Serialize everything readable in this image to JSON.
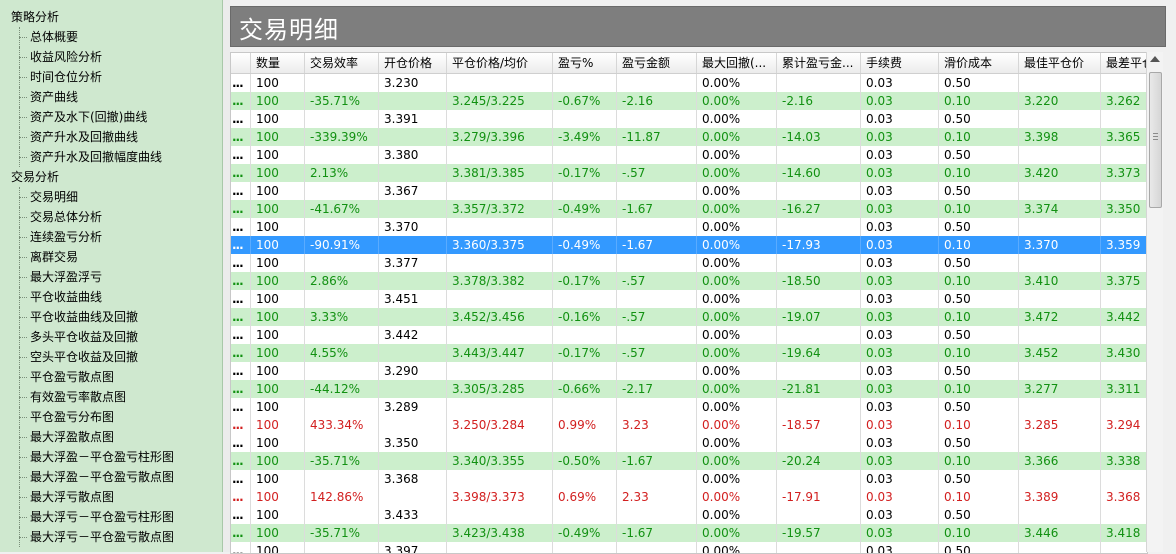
{
  "sidebar": {
    "items": [
      {
        "label": "策略分析",
        "type": "group"
      },
      {
        "label": "总体概要",
        "type": "leaf"
      },
      {
        "label": "收益风险分析",
        "type": "leaf"
      },
      {
        "label": "时间仓位分析",
        "type": "leaf"
      },
      {
        "label": "资产曲线",
        "type": "leaf"
      },
      {
        "label": "资产及水下(回撤)曲线",
        "type": "leaf"
      },
      {
        "label": "资产升水及回撤曲线",
        "type": "leaf"
      },
      {
        "label": "资产升水及回撤幅度曲线",
        "type": "leaf"
      },
      {
        "label": "交易分析",
        "type": "group"
      },
      {
        "label": "交易明细",
        "type": "leaf"
      },
      {
        "label": "交易总体分析",
        "type": "leaf"
      },
      {
        "label": "连续盈亏分析",
        "type": "leaf"
      },
      {
        "label": "离群交易",
        "type": "leaf"
      },
      {
        "label": "最大浮盈浮亏",
        "type": "leaf"
      },
      {
        "label": "平仓收益曲线",
        "type": "leaf"
      },
      {
        "label": "平仓收益曲线及回撤",
        "type": "leaf"
      },
      {
        "label": "多头平仓收益及回撤",
        "type": "leaf"
      },
      {
        "label": "空头平仓收益及回撤",
        "type": "leaf"
      },
      {
        "label": "平仓盈亏散点图",
        "type": "leaf"
      },
      {
        "label": "有效盈亏率散点图",
        "type": "leaf"
      },
      {
        "label": "平仓盈亏分布图",
        "type": "leaf"
      },
      {
        "label": "最大浮盈散点图",
        "type": "leaf"
      },
      {
        "label": "最大浮盈－平仓盈亏柱形图",
        "type": "leaf"
      },
      {
        "label": "最大浮盈－平仓盈亏散点图",
        "type": "leaf"
      },
      {
        "label": "最大浮亏散点图",
        "type": "leaf"
      },
      {
        "label": "最大浮亏－平仓盈亏柱形图",
        "type": "leaf"
      },
      {
        "label": "最大浮亏－平仓盈亏散点图",
        "type": "leaf"
      }
    ]
  },
  "header": {
    "title": "交易明细"
  },
  "table": {
    "columns": [
      "",
      "数量",
      "交易效率",
      "开仓价格",
      "平仓价格/均价",
      "盈亏%",
      "盈亏金额",
      "最大回撤(...",
      "累计盈亏金...",
      "手续费",
      "滑价成本",
      "最佳平仓价",
      "最差平仓"
    ],
    "rows": [
      {
        "style": "white",
        "cells": [
          "...",
          "100",
          "",
          "3.230",
          "",
          "",
          "",
          "0.00%",
          "",
          "0.03",
          "0.50",
          "",
          ""
        ]
      },
      {
        "style": "green",
        "cells": [
          "...",
          "100",
          "-35.71%",
          "",
          "3.245/3.225",
          "-0.67%",
          "-2.16",
          "0.00%",
          "-2.16",
          "0.03",
          "0.10",
          "3.220",
          "3.262"
        ]
      },
      {
        "style": "white",
        "cells": [
          "...",
          "100",
          "",
          "3.391",
          "",
          "",
          "",
          "0.00%",
          "",
          "0.03",
          "0.50",
          "",
          ""
        ]
      },
      {
        "style": "green",
        "cells": [
          "...",
          "100",
          "-339.39%",
          "",
          "3.279/3.396",
          "-3.49%",
          "-11.87",
          "0.00%",
          "-14.03",
          "0.03",
          "0.10",
          "3.398",
          "3.365"
        ]
      },
      {
        "style": "white",
        "cells": [
          "...",
          "100",
          "",
          "3.380",
          "",
          "",
          "",
          "0.00%",
          "",
          "0.03",
          "0.50",
          "",
          ""
        ]
      },
      {
        "style": "green",
        "cells": [
          "...",
          "100",
          "2.13%",
          "",
          "3.381/3.385",
          "-0.17%",
          "-.57",
          "0.00%",
          "-14.60",
          "0.03",
          "0.10",
          "3.420",
          "3.373"
        ]
      },
      {
        "style": "white",
        "cells": [
          "...",
          "100",
          "",
          "3.367",
          "",
          "",
          "",
          "0.00%",
          "",
          "0.03",
          "0.50",
          "",
          ""
        ]
      },
      {
        "style": "green",
        "cells": [
          "...",
          "100",
          "-41.67%",
          "",
          "3.357/3.372",
          "-0.49%",
          "-1.67",
          "0.00%",
          "-16.27",
          "0.03",
          "0.10",
          "3.374",
          "3.350"
        ]
      },
      {
        "style": "white",
        "cells": [
          "...",
          "100",
          "",
          "3.370",
          "",
          "",
          "",
          "0.00%",
          "",
          "0.03",
          "0.50",
          "",
          ""
        ]
      },
      {
        "style": "selected",
        "cells": [
          "...",
          "100",
          "-90.91%",
          "",
          "3.360/3.375",
          "-0.49%",
          "-1.67",
          "0.00%",
          "-17.93",
          "0.03",
          "0.10",
          "3.370",
          "3.359"
        ]
      },
      {
        "style": "white",
        "cells": [
          "...",
          "100",
          "",
          "3.377",
          "",
          "",
          "",
          "0.00%",
          "",
          "0.03",
          "0.50",
          "",
          ""
        ]
      },
      {
        "style": "green",
        "cells": [
          "...",
          "100",
          "2.86%",
          "",
          "3.378/3.382",
          "-0.17%",
          "-.57",
          "0.00%",
          "-18.50",
          "0.03",
          "0.10",
          "3.410",
          "3.375"
        ]
      },
      {
        "style": "white",
        "cells": [
          "...",
          "100",
          "",
          "3.451",
          "",
          "",
          "",
          "0.00%",
          "",
          "0.03",
          "0.50",
          "",
          ""
        ]
      },
      {
        "style": "green",
        "cells": [
          "...",
          "100",
          "3.33%",
          "",
          "3.452/3.456",
          "-0.16%",
          "-.57",
          "0.00%",
          "-19.07",
          "0.03",
          "0.10",
          "3.472",
          "3.442"
        ]
      },
      {
        "style": "white",
        "cells": [
          "...",
          "100",
          "",
          "3.442",
          "",
          "",
          "",
          "0.00%",
          "",
          "0.03",
          "0.50",
          "",
          ""
        ]
      },
      {
        "style": "green",
        "cells": [
          "...",
          "100",
          "4.55%",
          "",
          "3.443/3.447",
          "-0.17%",
          "-.57",
          "0.00%",
          "-19.64",
          "0.03",
          "0.10",
          "3.452",
          "3.430"
        ]
      },
      {
        "style": "white",
        "cells": [
          "...",
          "100",
          "",
          "3.290",
          "",
          "",
          "",
          "0.00%",
          "",
          "0.03",
          "0.50",
          "",
          ""
        ]
      },
      {
        "style": "green",
        "cells": [
          "...",
          "100",
          "-44.12%",
          "",
          "3.305/3.285",
          "-0.66%",
          "-2.17",
          "0.00%",
          "-21.81",
          "0.03",
          "0.10",
          "3.277",
          "3.311"
        ]
      },
      {
        "style": "white",
        "cells": [
          "...",
          "100",
          "",
          "3.289",
          "",
          "",
          "",
          "0.00%",
          "",
          "0.03",
          "0.50",
          "",
          ""
        ]
      },
      {
        "style": "red",
        "cells": [
          "...",
          "100",
          "433.34%",
          "",
          "3.250/3.284",
          "0.99%",
          "3.23",
          "0.00%",
          "-18.57",
          "0.03",
          "0.10",
          "3.285",
          "3.294"
        ]
      },
      {
        "style": "white",
        "cells": [
          "...",
          "100",
          "",
          "3.350",
          "",
          "",
          "",
          "0.00%",
          "",
          "0.03",
          "0.50",
          "",
          ""
        ]
      },
      {
        "style": "green",
        "cells": [
          "...",
          "100",
          "-35.71%",
          "",
          "3.340/3.355",
          "-0.50%",
          "-1.67",
          "0.00%",
          "-20.24",
          "0.03",
          "0.10",
          "3.366",
          "3.338"
        ]
      },
      {
        "style": "white",
        "cells": [
          "...",
          "100",
          "",
          "3.368",
          "",
          "",
          "",
          "0.00%",
          "",
          "0.03",
          "0.50",
          "",
          ""
        ]
      },
      {
        "style": "red",
        "cells": [
          "...",
          "100",
          "142.86%",
          "",
          "3.398/3.373",
          "0.69%",
          "2.33",
          "0.00%",
          "-17.91",
          "0.03",
          "0.10",
          "3.389",
          "3.368"
        ]
      },
      {
        "style": "white",
        "cells": [
          "...",
          "100",
          "",
          "3.433",
          "",
          "",
          "",
          "0.00%",
          "",
          "0.03",
          "0.50",
          "",
          ""
        ]
      },
      {
        "style": "green",
        "cells": [
          "...",
          "100",
          "-35.71%",
          "",
          "3.423/3.438",
          "-0.49%",
          "-1.67",
          "0.00%",
          "-19.57",
          "0.03",
          "0.10",
          "3.446",
          "3.418"
        ]
      },
      {
        "style": "white",
        "cells": [
          "...",
          "100",
          "",
          "3.397",
          "",
          "",
          "",
          "0.00%",
          "",
          "0.03",
          "0.50",
          "",
          ""
        ]
      }
    ]
  },
  "colors": {
    "sidebar_bg": "#cfe8cf",
    "row_green": "#ccefcc",
    "text_green": "#129112",
    "text_red": "#d21f1f",
    "selected": "#3399ff",
    "header_bg": "#7e7e7e"
  }
}
